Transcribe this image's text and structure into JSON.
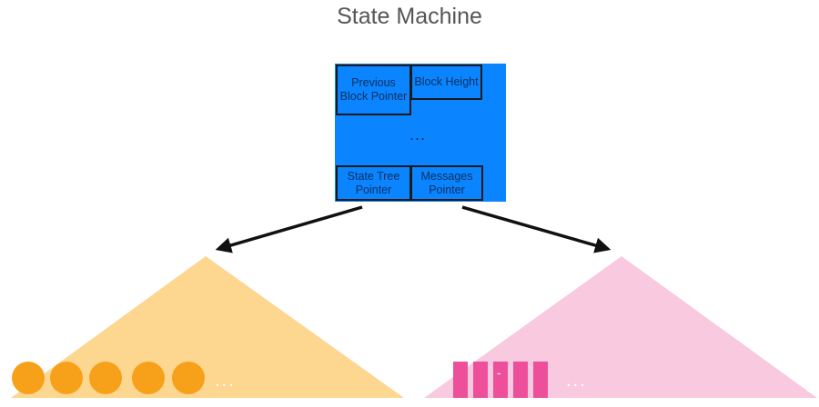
{
  "title": "State Machine",
  "block": {
    "previous_block_pointer": "Previous Block Pointer",
    "block_height": "Block Height",
    "ellipsis": "...",
    "state_tree_pointer": "State Tree Pointer",
    "messages_pointer": "Messages Pointer"
  },
  "left_tree": {
    "ellipsis": "...",
    "color": "#fdd690",
    "leaf_color": "#f7a11a"
  },
  "right_tree": {
    "ellipsis": "...",
    "inner_mark": "-",
    "color": "#f9c9e0",
    "leaf_color": "#ee4f9a"
  },
  "colors": {
    "block": "#0a84ff",
    "arrow": "#111111"
  }
}
